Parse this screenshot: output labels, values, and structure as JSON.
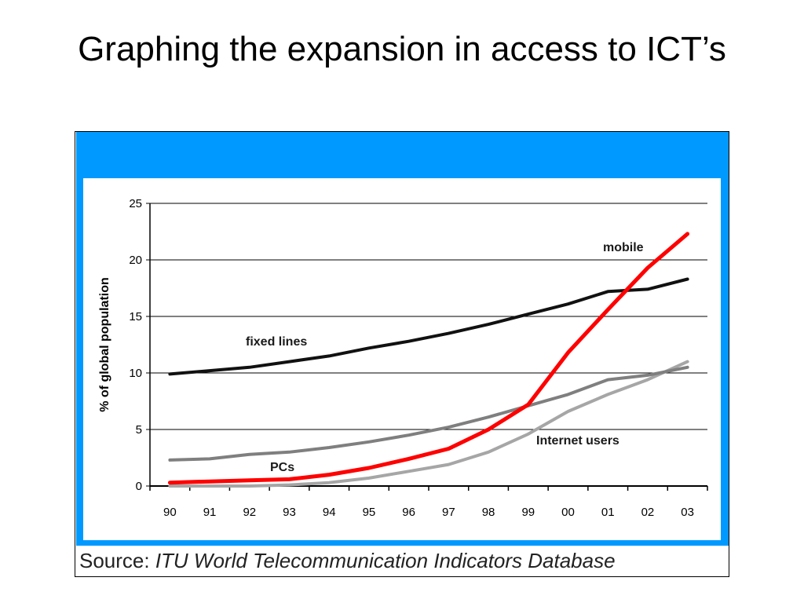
{
  "slide": {
    "title": "Graphing the expansion in access to ICT’s"
  },
  "source": {
    "prefix": "Source: ",
    "name": "ITU World Telecommunication Indicators Database"
  },
  "chart_data": {
    "type": "line",
    "title": "",
    "xlabel": "",
    "ylabel": "% of global population",
    "categories": [
      "90",
      "91",
      "92",
      "93",
      "94",
      "95",
      "96",
      "97",
      "98",
      "99",
      "00",
      "01",
      "02",
      "03"
    ],
    "ylim": [
      0,
      25
    ],
    "yticks": [
      0,
      5,
      10,
      15,
      20,
      25
    ],
    "grid": true,
    "legend": "inline labels",
    "series": [
      {
        "name": "fixed lines",
        "color": "#111111",
        "values": [
          9.9,
          10.2,
          10.5,
          11.0,
          11.5,
          12.2,
          12.8,
          13.5,
          14.3,
          15.2,
          16.1,
          17.2,
          17.4,
          18.3
        ]
      },
      {
        "name": "mobile",
        "color": "#ff0000",
        "values": [
          0.3,
          0.4,
          0.5,
          0.6,
          1.0,
          1.6,
          2.4,
          3.3,
          5.0,
          7.2,
          11.8,
          15.6,
          19.3,
          22.3
        ]
      },
      {
        "name": "PCs",
        "color": "#7f7f7f",
        "values": [
          2.3,
          2.4,
          2.8,
          3.0,
          3.4,
          3.9,
          4.5,
          5.2,
          6.1,
          7.1,
          8.1,
          9.4,
          9.8,
          10.5
        ]
      },
      {
        "name": "Internet users",
        "color": "#a6a6a6",
        "values": [
          0.0,
          0.0,
          0.0,
          0.1,
          0.3,
          0.7,
          1.3,
          1.9,
          3.0,
          4.6,
          6.6,
          8.1,
          9.4,
          11.0
        ]
      }
    ]
  }
}
